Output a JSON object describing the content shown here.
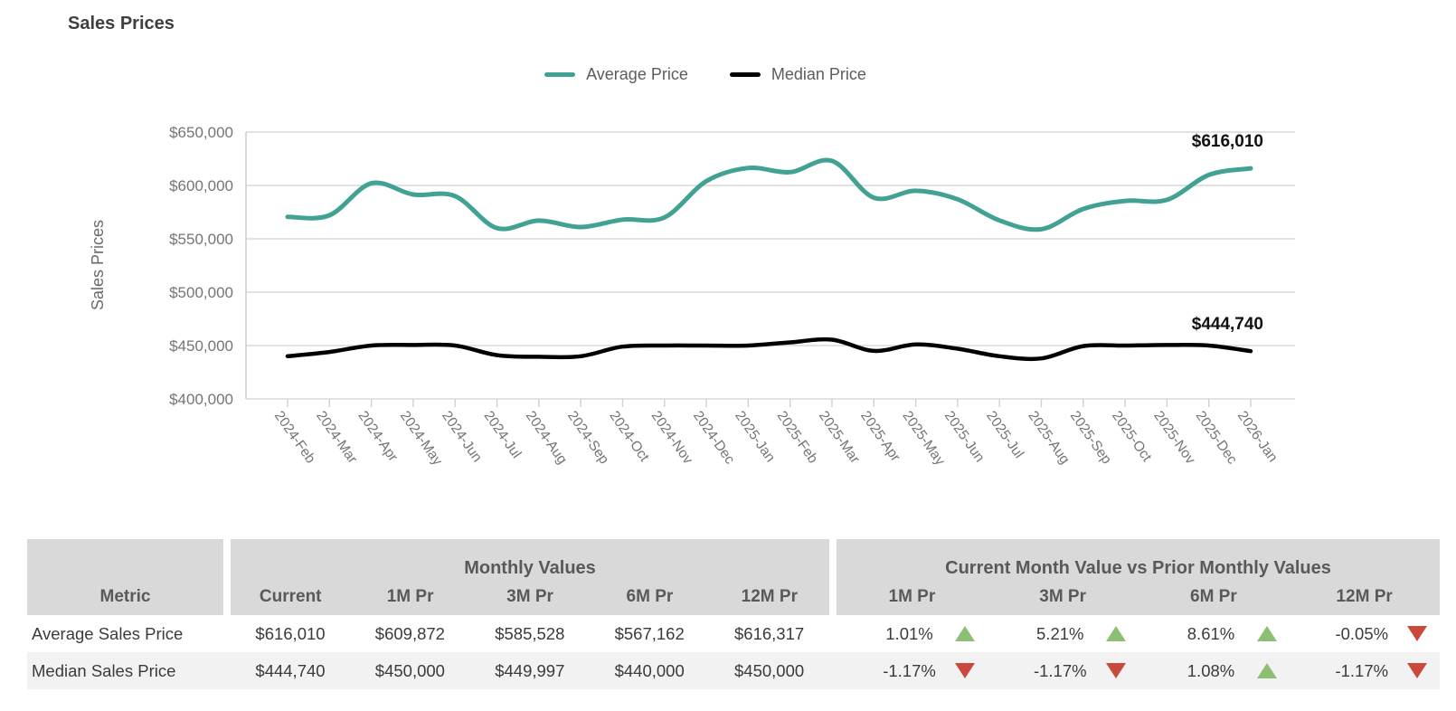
{
  "title": "Sales Prices",
  "legend": [
    {
      "label": "Average Price",
      "color": "#41a294"
    },
    {
      "label": "Median Price",
      "color": "#000000"
    }
  ],
  "chart_data": {
    "type": "line",
    "title": "Sales Prices",
    "ylabel": "Sales Prices",
    "ylim": [
      400000,
      650000
    ],
    "ytick_step": 50000,
    "ytick_labels": [
      "$400,000",
      "$450,000",
      "$500,000",
      "$550,000",
      "$600,000",
      "$650,000"
    ],
    "grid": true,
    "legend_position": "top",
    "categories": [
      "2024-Feb",
      "2024-Mar",
      "2024-Apr",
      "2024-May",
      "2024-Jun",
      "2024-Jul",
      "2024-Aug",
      "2024-Sep",
      "2024-Oct",
      "2024-Nov",
      "2024-Dec",
      "2025-Jan",
      "2025-Feb",
      "2025-Mar",
      "2025-Apr",
      "2025-May",
      "2025-Jun",
      "2025-Jul",
      "2025-Aug",
      "2025-Sep",
      "2025-Oct",
      "2025-Nov",
      "2025-Dec",
      "2026-Jan"
    ],
    "series": [
      {
        "name": "Average Price",
        "color": "#41a294",
        "stroke_width": 5,
        "end_label": "$616,010",
        "values": [
          570500,
          572000,
          602000,
          591500,
          590000,
          560000,
          567000,
          561000,
          568000,
          570000,
          604000,
          616317,
          612500,
          623000,
          588500,
          595000,
          587000,
          567162,
          559000,
          578000,
          585528,
          586500,
          609872,
          616010
        ]
      },
      {
        "name": "Median Price",
        "color": "#000000",
        "stroke_width": 4.5,
        "end_label": "$444,740",
        "values": [
          440000,
          444000,
          450000,
          450500,
          450000,
          441000,
          439500,
          440000,
          449000,
          450000,
          450000,
          450000,
          453000,
          455500,
          445000,
          451000,
          447000,
          440000,
          438000,
          449500,
          449997,
          450500,
          450000,
          444740
        ]
      }
    ]
  },
  "table": {
    "metric_header": "Metric",
    "group1_header": "Monthly Values",
    "group2_header": "Current Month Value vs Prior Monthly Values",
    "value_columns": [
      "Current",
      "1M Pr",
      "3M Pr",
      "6M Pr",
      "12M Pr"
    ],
    "compare_columns": [
      "1M Pr",
      "3M Pr",
      "6M Pr",
      "12M Pr"
    ],
    "up_color": "#8cbe74",
    "down_color": "#c94a3d",
    "rows": [
      {
        "metric": "Average Sales Price",
        "values": [
          "$616,010",
          "$609,872",
          "$585,528",
          "$567,162",
          "$616,317"
        ],
        "changes": [
          {
            "pct": "1.01%",
            "dir": "up"
          },
          {
            "pct": "5.21%",
            "dir": "up"
          },
          {
            "pct": "8.61%",
            "dir": "up"
          },
          {
            "pct": "-0.05%",
            "dir": "down"
          }
        ]
      },
      {
        "metric": "Median Sales Price",
        "values": [
          "$444,740",
          "$450,000",
          "$449,997",
          "$440,000",
          "$450,000"
        ],
        "changes": [
          {
            "pct": "-1.17%",
            "dir": "down"
          },
          {
            "pct": "-1.17%",
            "dir": "down"
          },
          {
            "pct": "1.08%",
            "dir": "up"
          },
          {
            "pct": "-1.17%",
            "dir": "down"
          }
        ]
      }
    ]
  }
}
